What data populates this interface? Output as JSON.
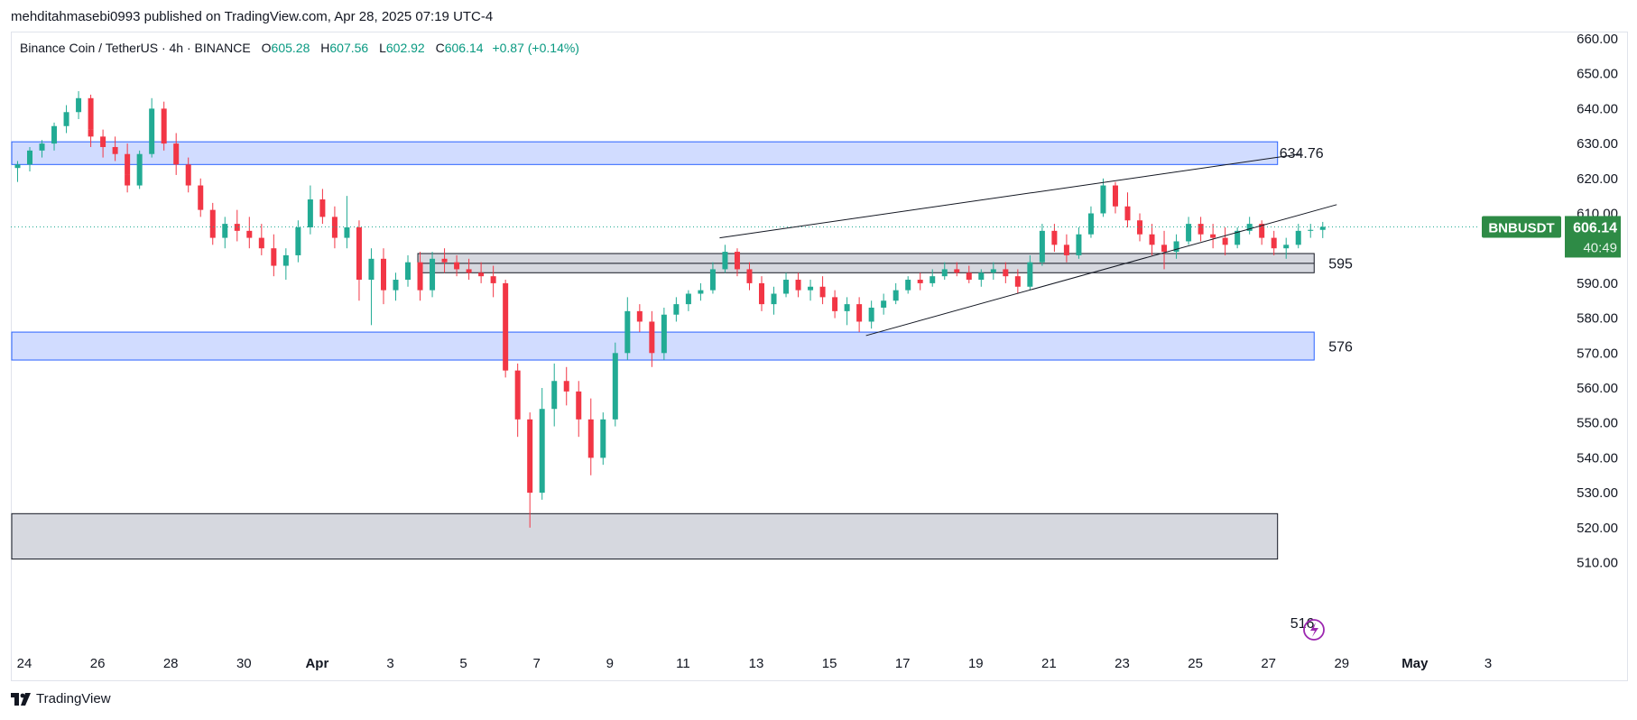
{
  "header": {
    "publisher_line": "mehditahmasebi0993 published on TradingView.com, Apr 28, 2025 07:19 UTC-4"
  },
  "legend": {
    "symbol": "Binance Coin / TetherUS · 4h · BINANCE",
    "o_label": "O",
    "o": "605.28",
    "h_label": "H",
    "h": "607.56",
    "l_label": "L",
    "l": "602.92",
    "c_label": "C",
    "c": "606.14",
    "change": "+0.87 (+0.14%)"
  },
  "footer": {
    "brand": "TradingView"
  },
  "colors": {
    "up": "#22ab94",
    "down": "#f23645",
    "blue_zone": "#c9d6ff",
    "blue_border": "#2962ff",
    "gray_zone": "#d1d4dc",
    "tag_bg": "#2e8b46"
  },
  "chart_data": {
    "type": "candlestick",
    "symbol": "BNBUSDT",
    "timeframe": "4h",
    "y_axis": {
      "ylim": [
        510,
        662
      ],
      "ticks": [
        "660.00",
        "650.00",
        "640.00",
        "630.00",
        "620.00",
        "610.00",
        "600.00",
        "590.00",
        "580.00",
        "570.00",
        "560.00",
        "550.00",
        "540.00",
        "530.00",
        "520.00",
        "510.00"
      ]
    },
    "x_axis": {
      "ticks": [
        "24",
        "26",
        "28",
        "30",
        "Apr",
        "3",
        "5",
        "7",
        "9",
        "11",
        "13",
        "15",
        "17",
        "19",
        "21",
        "23",
        "25",
        "27",
        "29",
        "May",
        "3"
      ]
    },
    "last_price": {
      "label": "BNBUSDT",
      "value": "606.14",
      "countdown": "40:49",
      "price": 606.14
    },
    "zones": [
      {
        "type": "demand-supply",
        "color": "blue",
        "top": 630.5,
        "bottom": 624.0,
        "start": "Mar 24",
        "end": "Apr 27",
        "label": "634.76"
      },
      {
        "type": "support",
        "color": "gray",
        "top": 598.5,
        "bottom": 593.0,
        "start": "Apr 4",
        "end": "Apr 28",
        "label": "595"
      },
      {
        "type": "demand",
        "color": "blue",
        "top": 576.0,
        "bottom": 568.0,
        "start": "Mar 24",
        "end": "Apr 28",
        "label": "576"
      },
      {
        "type": "demand",
        "color": "gray",
        "top": 524.0,
        "bottom": 511.0,
        "start": "Mar 24",
        "end": "Apr 27",
        "label": "516"
      }
    ],
    "trendlines": [
      {
        "from": [
          "Apr 12",
          603.0
        ],
        "to": [
          "Apr 27",
          627.0
        ]
      },
      {
        "from": [
          "Apr 16",
          575.0
        ],
        "to": [
          "Apr 28",
          612.5
        ]
      }
    ],
    "candles": [
      {
        "d": "Mar 24",
        "o": 623,
        "h": 625,
        "l": 619,
        "c": 624
      },
      {
        "d": "Mar 24",
        "o": 624,
        "h": 629,
        "l": 622,
        "c": 628
      },
      {
        "d": "Mar 24",
        "o": 628,
        "h": 631,
        "l": 626,
        "c": 630
      },
      {
        "d": "Mar 25",
        "o": 630,
        "h": 636,
        "l": 628,
        "c": 635
      },
      {
        "d": "Mar 25",
        "o": 635,
        "h": 641,
        "l": 633,
        "c": 639
      },
      {
        "d": "Mar 25",
        "o": 639,
        "h": 645,
        "l": 637,
        "c": 643
      },
      {
        "d": "Mar 25",
        "o": 643,
        "h": 644,
        "l": 633,
        "c": 634
      },
      {
        "d": "Mar 26",
        "o": 634,
        "h": 637,
        "l": 629,
        "c": 632
      },
      {
        "d": "Mar 26",
        "o": 632,
        "h": 634,
        "l": 626,
        "c": 629
      },
      {
        "d": "Mar 26",
        "o": 629,
        "h": 632,
        "l": 625,
        "c": 627
      },
      {
        "d": "Mar 26",
        "o": 627,
        "h": 630,
        "l": 619,
        "c": 621
      },
      {
        "d": "Mar 27",
        "o": 621,
        "h": 624,
        "l": 616,
        "c": 618
      },
      {
        "d": "Mar 27",
        "o": 618,
        "h": 628,
        "l": 617,
        "c": 627
      },
      {
        "d": "Mar 27",
        "o": 627,
        "h": 643,
        "l": 626,
        "c": 640
      },
      {
        "d": "Mar 27",
        "o": 640,
        "h": 642,
        "l": 632,
        "c": 637
      },
      {
        "d": "Mar 28",
        "o": 637,
        "h": 639,
        "l": 628,
        "c": 630
      },
      {
        "d": "Mar 28",
        "o": 630,
        "h": 633,
        "l": 621,
        "c": 624
      },
      {
        "d": "Mar 28",
        "o": 624,
        "h": 626,
        "l": 616,
        "c": 618
      },
      {
        "d": "Mar 29",
        "o": 618,
        "h": 620,
        "l": 609,
        "c": 611
      },
      {
        "d": "Mar 29",
        "o": 611,
        "h": 613,
        "l": 601,
        "c": 603
      },
      {
        "d": "Mar 29",
        "o": 603,
        "h": 609,
        "l": 600,
        "c": 607
      },
      {
        "d": "Mar 30",
        "o": 607,
        "h": 611,
        "l": 602,
        "c": 605
      },
      {
        "d": "Mar 30",
        "o": 605,
        "h": 609,
        "l": 600,
        "c": 603
      },
      {
        "d": "Mar 30",
        "o": 603,
        "h": 607,
        "l": 598,
        "c": 600
      },
      {
        "d": "Mar 31",
        "o": 600,
        "h": 604,
        "l": 592,
        "c": 595
      },
      {
        "d": "Mar 31",
        "o": 595,
        "h": 600,
        "l": 591,
        "c": 598
      },
      {
        "d": "Mar 31",
        "o": 598,
        "h": 608,
        "l": 596,
        "c": 606
      },
      {
        "d": "Apr 1",
        "o": 606,
        "h": 618,
        "l": 604,
        "c": 614
      },
      {
        "d": "Apr 1",
        "o": 614,
        "h": 617,
        "l": 607,
        "c": 609
      },
      {
        "d": "Apr 1",
        "o": 609,
        "h": 612,
        "l": 600,
        "c": 603
      },
      {
        "d": "Apr 2",
        "o": 603,
        "h": 615,
        "l": 600,
        "c": 606
      },
      {
        "d": "Apr 2",
        "o": 606,
        "h": 608,
        "l": 585,
        "c": 591
      },
      {
        "d": "Apr 2",
        "o": 591,
        "h": 600,
        "l": 578,
        "c": 597
      },
      {
        "d": "Apr 3",
        "o": 597,
        "h": 600,
        "l": 584,
        "c": 588
      },
      {
        "d": "Apr 3",
        "o": 588,
        "h": 593,
        "l": 585,
        "c": 591
      },
      {
        "d": "Apr 3",
        "o": 591,
        "h": 598,
        "l": 589,
        "c": 596
      },
      {
        "d": "Apr 4",
        "o": 596,
        "h": 599,
        "l": 585,
        "c": 588
      },
      {
        "d": "Apr 4",
        "o": 588,
        "h": 599,
        "l": 586,
        "c": 597
      },
      {
        "d": "Apr 4",
        "o": 597,
        "h": 600,
        "l": 593,
        "c": 596
      },
      {
        "d": "Apr 5",
        "o": 596,
        "h": 598,
        "l": 592,
        "c": 594
      },
      {
        "d": "Apr 5",
        "o": 594,
        "h": 597,
        "l": 591,
        "c": 593
      },
      {
        "d": "Apr 5",
        "o": 593,
        "h": 596,
        "l": 590,
        "c": 592
      },
      {
        "d": "Apr 6",
        "o": 592,
        "h": 595,
        "l": 586,
        "c": 590
      },
      {
        "d": "Apr 6",
        "o": 590,
        "h": 591,
        "l": 563,
        "c": 565
      },
      {
        "d": "Apr 6",
        "o": 565,
        "h": 567,
        "l": 546,
        "c": 551
      },
      {
        "d": "Apr 7",
        "o": 551,
        "h": 553,
        "l": 520,
        "c": 530
      },
      {
        "d": "Apr 7",
        "o": 530,
        "h": 560,
        "l": 528,
        "c": 554
      },
      {
        "d": "Apr 7",
        "o": 554,
        "h": 567,
        "l": 549,
        "c": 562
      },
      {
        "d": "Apr 8",
        "o": 562,
        "h": 566,
        "l": 555,
        "c": 559
      },
      {
        "d": "Apr 8",
        "o": 559,
        "h": 562,
        "l": 546,
        "c": 551
      },
      {
        "d": "Apr 8",
        "o": 551,
        "h": 557,
        "l": 535,
        "c": 540
      },
      {
        "d": "Apr 9",
        "o": 540,
        "h": 553,
        "l": 538,
        "c": 551
      },
      {
        "d": "Apr 9",
        "o": 551,
        "h": 573,
        "l": 549,
        "c": 570
      },
      {
        "d": "Apr 9",
        "o": 570,
        "h": 586,
        "l": 568,
        "c": 582
      },
      {
        "d": "Apr 10",
        "o": 582,
        "h": 584,
        "l": 576,
        "c": 579
      },
      {
        "d": "Apr 10",
        "o": 579,
        "h": 582,
        "l": 566,
        "c": 570
      },
      {
        "d": "Apr 10",
        "o": 570,
        "h": 583,
        "l": 568,
        "c": 581
      },
      {
        "d": "Apr 11",
        "o": 581,
        "h": 586,
        "l": 579,
        "c": 584
      },
      {
        "d": "Apr 11",
        "o": 584,
        "h": 588,
        "l": 582,
        "c": 587
      },
      {
        "d": "Apr 11",
        "o": 587,
        "h": 590,
        "l": 585,
        "c": 588
      },
      {
        "d": "Apr 12",
        "o": 588,
        "h": 596,
        "l": 587,
        "c": 594
      },
      {
        "d": "Apr 12",
        "o": 594,
        "h": 601,
        "l": 593,
        "c": 599
      },
      {
        "d": "Apr 12",
        "o": 599,
        "h": 600,
        "l": 592,
        "c": 594
      },
      {
        "d": "Apr 13",
        "o": 594,
        "h": 596,
        "l": 588,
        "c": 590
      },
      {
        "d": "Apr 13",
        "o": 590,
        "h": 592,
        "l": 582,
        "c": 584
      },
      {
        "d": "Apr 13",
        "o": 584,
        "h": 589,
        "l": 581,
        "c": 587
      },
      {
        "d": "Apr 14",
        "o": 587,
        "h": 593,
        "l": 586,
        "c": 591
      },
      {
        "d": "Apr 14",
        "o": 591,
        "h": 593,
        "l": 586,
        "c": 588
      },
      {
        "d": "Apr 14",
        "o": 588,
        "h": 591,
        "l": 585,
        "c": 589
      },
      {
        "d": "Apr 15",
        "o": 589,
        "h": 592,
        "l": 584,
        "c": 586
      },
      {
        "d": "Apr 15",
        "o": 586,
        "h": 588,
        "l": 580,
        "c": 582
      },
      {
        "d": "Apr 15",
        "o": 582,
        "h": 586,
        "l": 578,
        "c": 584
      },
      {
        "d": "Apr 16",
        "o": 584,
        "h": 586,
        "l": 576,
        "c": 579
      },
      {
        "d": "Apr 16",
        "o": 579,
        "h": 585,
        "l": 577,
        "c": 583
      },
      {
        "d": "Apr 16",
        "o": 583,
        "h": 587,
        "l": 581,
        "c": 585
      },
      {
        "d": "Apr 17",
        "o": 585,
        "h": 590,
        "l": 584,
        "c": 588
      },
      {
        "d": "Apr 17",
        "o": 588,
        "h": 592,
        "l": 587,
        "c": 591
      },
      {
        "d": "Apr 17",
        "o": 591,
        "h": 593,
        "l": 588,
        "c": 590
      },
      {
        "d": "Apr 18",
        "o": 590,
        "h": 594,
        "l": 589,
        "c": 592
      },
      {
        "d": "Apr 18",
        "o": 592,
        "h": 596,
        "l": 591,
        "c": 594
      },
      {
        "d": "Apr 18",
        "o": 594,
        "h": 596,
        "l": 592,
        "c": 593
      },
      {
        "d": "Apr 19",
        "o": 593,
        "h": 595,
        "l": 590,
        "c": 591
      },
      {
        "d": "Apr 19",
        "o": 591,
        "h": 594,
        "l": 589,
        "c": 593
      },
      {
        "d": "Apr 19",
        "o": 593,
        "h": 596,
        "l": 591,
        "c": 594
      },
      {
        "d": "Apr 20",
        "o": 594,
        "h": 596,
        "l": 590,
        "c": 592
      },
      {
        "d": "Apr 20",
        "o": 592,
        "h": 594,
        "l": 587,
        "c": 589
      },
      {
        "d": "Apr 20",
        "o": 589,
        "h": 598,
        "l": 588,
        "c": 596
      },
      {
        "d": "Apr 21",
        "o": 596,
        "h": 607,
        "l": 595,
        "c": 605
      },
      {
        "d": "Apr 21",
        "o": 605,
        "h": 607,
        "l": 599,
        "c": 601
      },
      {
        "d": "Apr 21",
        "o": 601,
        "h": 604,
        "l": 596,
        "c": 598
      },
      {
        "d": "Apr 22",
        "o": 598,
        "h": 606,
        "l": 597,
        "c": 604
      },
      {
        "d": "Apr 22",
        "o": 604,
        "h": 612,
        "l": 603,
        "c": 610
      },
      {
        "d": "Apr 22",
        "o": 610,
        "h": 620,
        "l": 609,
        "c": 618
      },
      {
        "d": "Apr 23",
        "o": 618,
        "h": 619,
        "l": 610,
        "c": 612
      },
      {
        "d": "Apr 23",
        "o": 612,
        "h": 616,
        "l": 606,
        "c": 608
      },
      {
        "d": "Apr 23",
        "o": 608,
        "h": 610,
        "l": 602,
        "c": 604
      },
      {
        "d": "Apr 24",
        "o": 604,
        "h": 607,
        "l": 598,
        "c": 601
      },
      {
        "d": "Apr 24",
        "o": 601,
        "h": 605,
        "l": 594,
        "c": 599
      },
      {
        "d": "Apr 24",
        "o": 599,
        "h": 604,
        "l": 597,
        "c": 602
      },
      {
        "d": "Apr 25",
        "o": 602,
        "h": 609,
        "l": 601,
        "c": 607
      },
      {
        "d": "Apr 25",
        "o": 607,
        "h": 609,
        "l": 602,
        "c": 604
      },
      {
        "d": "Apr 25",
        "o": 604,
        "h": 607,
        "l": 600,
        "c": 603
      },
      {
        "d": "Apr 26",
        "o": 603,
        "h": 606,
        "l": 598,
        "c": 601
      },
      {
        "d": "Apr 26",
        "o": 601,
        "h": 606,
        "l": 600,
        "c": 605
      },
      {
        "d": "Apr 26",
        "o": 605,
        "h": 609,
        "l": 604,
        "c": 607
      },
      {
        "d": "Apr 27",
        "o": 607,
        "h": 608,
        "l": 601,
        "c": 603
      },
      {
        "d": "Apr 27",
        "o": 603,
        "h": 605,
        "l": 598,
        "c": 600
      },
      {
        "d": "Apr 27",
        "o": 600,
        "h": 603,
        "l": 597,
        "c": 601
      },
      {
        "d": "Apr 28",
        "o": 601,
        "h": 607,
        "l": 600,
        "c": 605
      },
      {
        "d": "Apr 28",
        "o": 605,
        "h": 607,
        "l": 603,
        "c": 605.28
      },
      {
        "d": "Apr 28",
        "o": 605.28,
        "h": 607.56,
        "l": 602.92,
        "c": 606.14
      }
    ]
  }
}
